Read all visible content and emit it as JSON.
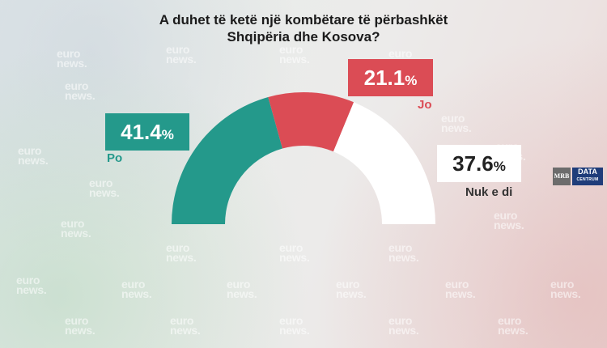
{
  "title": {
    "line1": "A duhet të ketë një kombëtare të përbashkët",
    "line2": "Shqipëria dhe Kosova?"
  },
  "watermark": {
    "line1": "euro",
    "line2": "news."
  },
  "logo": {
    "left": "MRB",
    "right": "DATA",
    "right_sub": "CENTRUM"
  },
  "colors": {
    "po": "#24998b",
    "jo": "#db4c55",
    "nuk": "#ffffff"
  },
  "chart_data": {
    "type": "pie",
    "subtype": "half-donut",
    "title": "A duhet të ketë një kombëtare të përbashkët Shqipëria dhe Kosova?",
    "slices": [
      {
        "label": "Po",
        "value": 41.4,
        "display": "41.4",
        "unit": "%",
        "color": "#24998b"
      },
      {
        "label": "Jo",
        "value": 21.1,
        "display": "21.1",
        "unit": "%",
        "color": "#db4c55"
      },
      {
        "label": "Nuk e di",
        "value": 37.6,
        "display": "37.6",
        "unit": "%",
        "color": "#ffffff"
      }
    ]
  }
}
